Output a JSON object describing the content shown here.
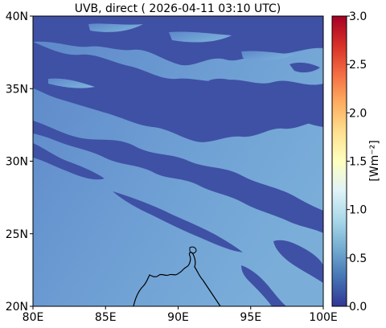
{
  "title": "UVB, direct ( 2026-04-11 03:10 UTC)",
  "colors": {
    "background_field": "#6b9bd1",
    "cloud_field": "#3f51a5",
    "coastline": "#000000"
  },
  "map": {
    "lon_range": [
      80,
      100
    ],
    "lat_range": [
      20,
      40
    ],
    "x_ticks": [
      {
        "value": 80,
        "label": "80E"
      },
      {
        "value": 85,
        "label": "85E"
      },
      {
        "value": 90,
        "label": "90E"
      },
      {
        "value": 95,
        "label": "95E"
      },
      {
        "value": 100,
        "label": "100E"
      }
    ],
    "y_ticks": [
      {
        "value": 20,
        "label": "20N"
      },
      {
        "value": 25,
        "label": "25N"
      },
      {
        "value": 30,
        "label": "30N"
      },
      {
        "value": 35,
        "label": "35N"
      },
      {
        "value": 40,
        "label": "40N"
      }
    ]
  },
  "colorbar": {
    "label": "[Wm⁻²]",
    "range": [
      0.0,
      3.0
    ],
    "colormap": "RdYlBu_r",
    "ticks": [
      {
        "value": 0.0,
        "label": "0.0"
      },
      {
        "value": 0.5,
        "label": "0.5"
      },
      {
        "value": 1.0,
        "label": "1.0"
      },
      {
        "value": 1.5,
        "label": "1.5"
      },
      {
        "value": 2.0,
        "label": "2.0"
      },
      {
        "value": 2.5,
        "label": "2.5"
      },
      {
        "value": 3.0,
        "label": "3.0"
      }
    ]
  }
}
